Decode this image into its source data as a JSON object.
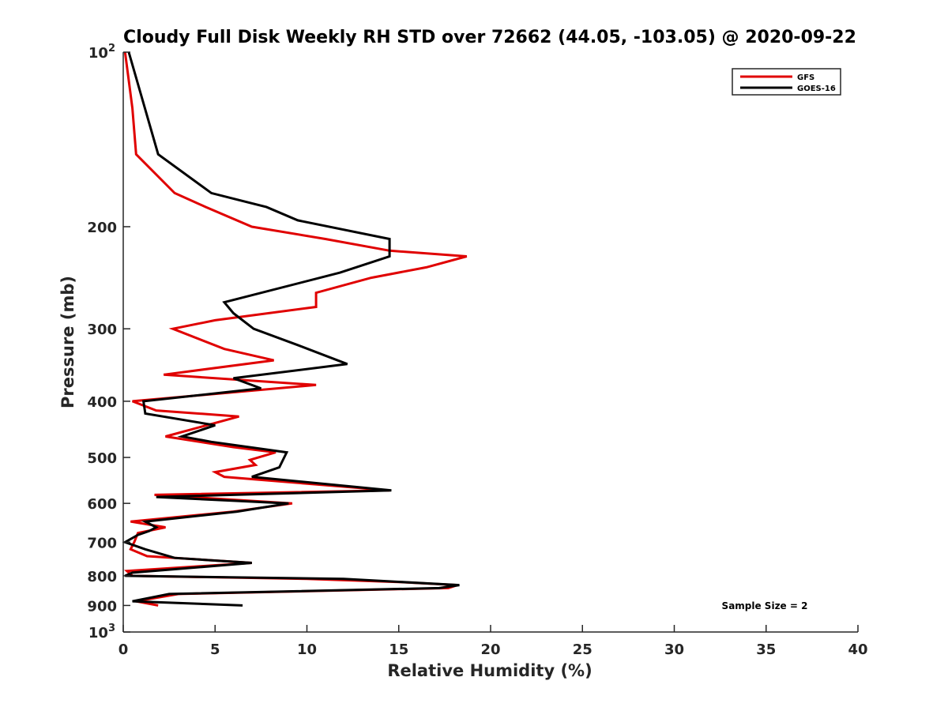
{
  "chart_data": {
    "type": "line",
    "title": "Cloudy Full Disk Weekly RH STD over 72662 (44.05, -103.05) @ 2020-09-22",
    "xlabel": "Relative Humidity (%)",
    "ylabel": "Pressure (mb)",
    "xlim": [
      0,
      40
    ],
    "ylim": [
      100,
      1000
    ],
    "y_scale": "log",
    "y_reversed": true,
    "grid": false,
    "legend_position": "top-right",
    "x_ticks": [
      0,
      5,
      10,
      15,
      20,
      25,
      30,
      35,
      40
    ],
    "y_ticks": [
      {
        "value": 100,
        "base": "10",
        "exp": "2"
      },
      {
        "value": 200,
        "label": "200"
      },
      {
        "value": 300,
        "label": "300"
      },
      {
        "value": 400,
        "label": "400"
      },
      {
        "value": 500,
        "label": "500"
      },
      {
        "value": 600,
        "label": "600"
      },
      {
        "value": 700,
        "label": "700"
      },
      {
        "value": 800,
        "label": "800"
      },
      {
        "value": 900,
        "label": "900"
      },
      {
        "value": 1000,
        "base": "10",
        "exp": "3"
      }
    ],
    "annotation": "Sample Size = 2",
    "series": [
      {
        "name": "GFS",
        "color": "#e00000",
        "points": [
          [
            0.1,
            100
          ],
          [
            0.5,
            125
          ],
          [
            0.7,
            150
          ],
          [
            2.8,
            175
          ],
          [
            4.5,
            185
          ],
          [
            7.0,
            200
          ],
          [
            11.0,
            210
          ],
          [
            14.5,
            220
          ],
          [
            18.7,
            225
          ],
          [
            16.5,
            235
          ],
          [
            13.5,
            245
          ],
          [
            10.5,
            260
          ],
          [
            10.5,
            275
          ],
          [
            5.0,
            290
          ],
          [
            2.7,
            300
          ],
          [
            5.5,
            325
          ],
          [
            8.2,
            340
          ],
          [
            2.2,
            360
          ],
          [
            10.5,
            375
          ],
          [
            0.5,
            400
          ],
          [
            1.8,
            415
          ],
          [
            6.3,
            425
          ],
          [
            2.3,
            460
          ],
          [
            6.0,
            480
          ],
          [
            8.3,
            490
          ],
          [
            6.9,
            505
          ],
          [
            7.2,
            515
          ],
          [
            5.0,
            530
          ],
          [
            5.5,
            540
          ],
          [
            14.5,
            570
          ],
          [
            1.7,
            580
          ],
          [
            9.2,
            600
          ],
          [
            6.0,
            620
          ],
          [
            0.4,
            645
          ],
          [
            2.3,
            660
          ],
          [
            0.8,
            675
          ],
          [
            0.6,
            700
          ],
          [
            0.4,
            720
          ],
          [
            1.3,
            740
          ],
          [
            7.0,
            760
          ],
          [
            0.2,
            785
          ],
          [
            0.5,
            800
          ],
          [
            10.0,
            810
          ],
          [
            15.0,
            820
          ],
          [
            18.2,
            830
          ],
          [
            17.7,
            840
          ],
          [
            3.0,
            860
          ],
          [
            0.7,
            885
          ],
          [
            1.9,
            900
          ]
        ]
      },
      {
        "name": "GOES-16",
        "color": "#000000",
        "points": [
          [
            0.3,
            100
          ],
          [
            1.9,
            150
          ],
          [
            4.8,
            175
          ],
          [
            7.8,
            185
          ],
          [
            9.5,
            195
          ],
          [
            14.5,
            210
          ],
          [
            14.5,
            225
          ],
          [
            11.8,
            240
          ],
          [
            5.5,
            270
          ],
          [
            6.0,
            282
          ],
          [
            7.1,
            300
          ],
          [
            9.5,
            320
          ],
          [
            12.2,
            345
          ],
          [
            6.0,
            365
          ],
          [
            7.5,
            380
          ],
          [
            1.1,
            400
          ],
          [
            1.2,
            420
          ],
          [
            5.0,
            440
          ],
          [
            3.2,
            460
          ],
          [
            4.8,
            470
          ],
          [
            8.9,
            490
          ],
          [
            8.5,
            520
          ],
          [
            7.0,
            540
          ],
          [
            14.6,
            570
          ],
          [
            1.8,
            585
          ],
          [
            9.0,
            600
          ],
          [
            6.2,
            620
          ],
          [
            1.2,
            645
          ],
          [
            1.8,
            660
          ],
          [
            1.4,
            670
          ],
          [
            0.8,
            680
          ],
          [
            0.1,
            700
          ],
          [
            1.2,
            720
          ],
          [
            2.8,
            745
          ],
          [
            7.0,
            760
          ],
          [
            0.5,
            790
          ],
          [
            0.1,
            800
          ],
          [
            12.0,
            810
          ],
          [
            18.3,
            830
          ],
          [
            17.2,
            840
          ],
          [
            2.5,
            860
          ],
          [
            0.5,
            885
          ],
          [
            6.5,
            900
          ]
        ]
      }
    ]
  }
}
